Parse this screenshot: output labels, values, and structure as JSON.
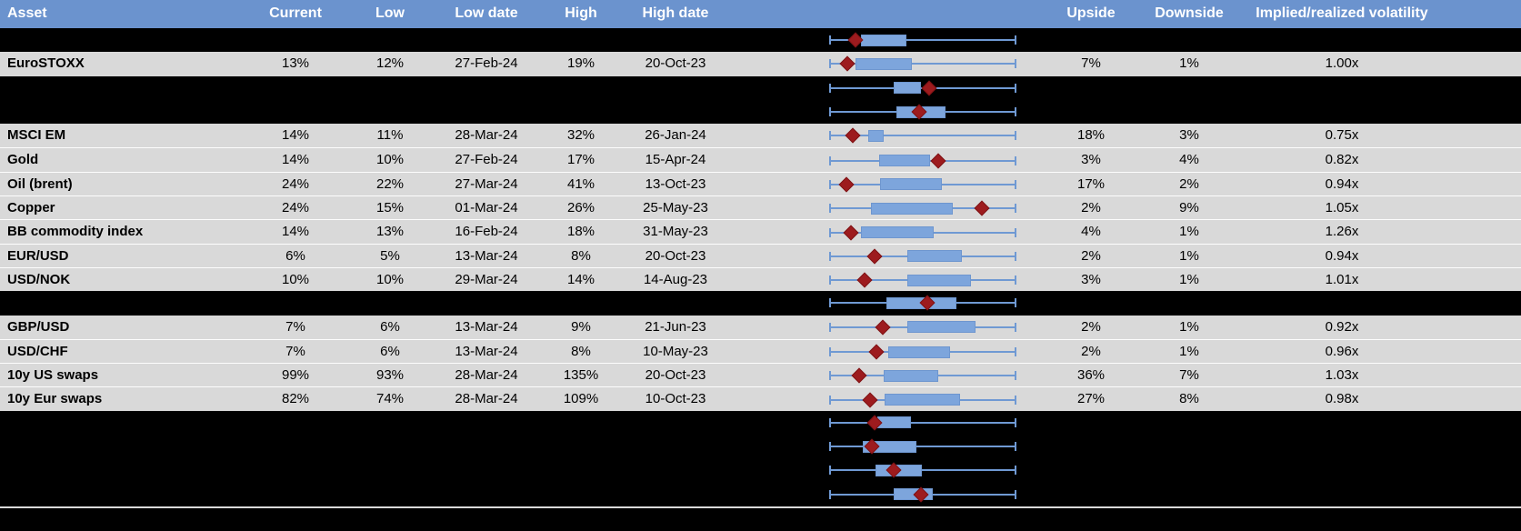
{
  "colors": {
    "header_bg": "#6b93ce",
    "header_text": "#ffffff",
    "row_bg": "#d9d9d9",
    "hidden_row_bg": "#000000",
    "whisker_blue": "#6f99d3",
    "box_blue": "#7da5dc",
    "marker_red": "#9d1b1e",
    "footer_rule": "#d9d9d9"
  },
  "header": {
    "labels": [
      "Asset",
      "Current",
      "Low",
      "Low date",
      "High",
      "High date",
      "",
      "Upside",
      "Downside",
      "Implied/realized volatility"
    ]
  },
  "chart_data": {
    "type": "table",
    "columns": [
      "Asset",
      "Current",
      "Low",
      "Low date",
      "High",
      "High date",
      "Range plot",
      "Upside",
      "Downside",
      "Implied/realized volatility"
    ],
    "plot_note": "Each row shows a box-whisker range plot: whiskers span full range (0-1 normalized), box and diamond marker positions are normalized fractions of the track width",
    "rows": [
      {
        "kind": "hidden",
        "plot": {
          "box_left": 0.167,
          "box_right": 0.412,
          "marker": 0.137
        }
      },
      {
        "kind": "data",
        "asset": "EuroSTOXX",
        "current": "13%",
        "low": "12%",
        "low_date": "27-Feb-24",
        "high": "19%",
        "high_date": "20-Oct-23",
        "upside": "7%",
        "downside": "1%",
        "impl_real": "1.00x",
        "plot": {
          "box_left": 0.137,
          "box_right": 0.441,
          "marker": 0.093
        }
      },
      {
        "kind": "hidden",
        "plot": {
          "box_left": 0.343,
          "box_right": 0.49,
          "marker": 0.535
        }
      },
      {
        "kind": "hidden",
        "plot": {
          "box_left": 0.357,
          "box_right": 0.622,
          "marker": 0.48
        }
      },
      {
        "kind": "data",
        "asset": "MSCI EM",
        "current": "14%",
        "low": "11%",
        "low_date": "28-Mar-24",
        "high": "32%",
        "high_date": "26-Jan-24",
        "upside": "18%",
        "downside": "3%",
        "impl_real": "0.75x",
        "plot": {
          "box_left": 0.206,
          "box_right": 0.289,
          "marker": 0.122
        }
      },
      {
        "kind": "data",
        "asset": "Gold",
        "current": "14%",
        "low": "10%",
        "low_date": "27-Feb-24",
        "high": "17%",
        "high_date": "15-Apr-24",
        "upside": "3%",
        "downside": "4%",
        "impl_real": "0.82x",
        "plot": {
          "box_left": 0.264,
          "box_right": 0.539,
          "marker": 0.583
        }
      },
      {
        "kind": "data",
        "asset": "Oil (brent)",
        "current": "24%",
        "low": "22%",
        "low_date": "27-Mar-24",
        "high": "41%",
        "high_date": "13-Oct-23",
        "upside": "17%",
        "downside": "2%",
        "impl_real": "0.94x",
        "plot": {
          "box_left": 0.268,
          "box_right": 0.603,
          "marker": 0.088
        }
      },
      {
        "kind": "data",
        "asset": "Copper",
        "current": "24%",
        "low": "15%",
        "low_date": "01-Mar-24",
        "high": "26%",
        "high_date": "25-May-23",
        "upside": "2%",
        "downside": "9%",
        "impl_real": "1.05x",
        "plot": {
          "box_left": 0.221,
          "box_right": 0.662,
          "marker": 0.819
        }
      },
      {
        "kind": "data",
        "asset": "BB commodity index",
        "current": "14%",
        "low": "13%",
        "low_date": "16-Feb-24",
        "high": "18%",
        "high_date": "31-May-23",
        "upside": "4%",
        "downside": "1%",
        "impl_real": "1.26x",
        "plot": {
          "box_left": 0.167,
          "box_right": 0.559,
          "marker": 0.113
        }
      },
      {
        "kind": "data",
        "asset": "EUR/USD",
        "current": "6%",
        "low": "5%",
        "low_date": "13-Mar-24",
        "high": "8%",
        "high_date": "20-Oct-23",
        "upside": "2%",
        "downside": "1%",
        "impl_real": "0.94x",
        "plot": {
          "box_left": 0.417,
          "box_right": 0.711,
          "marker": 0.24
        }
      },
      {
        "kind": "data",
        "asset": "USD/NOK",
        "current": "10%",
        "low": "10%",
        "low_date": "29-Mar-24",
        "high": "14%",
        "high_date": "14-Aug-23",
        "upside": "3%",
        "downside": "1%",
        "impl_real": "1.01x",
        "plot": {
          "box_left": 0.417,
          "box_right": 0.76,
          "marker": 0.186
        }
      },
      {
        "kind": "hidden",
        "plot": {
          "box_left": 0.304,
          "box_right": 0.681,
          "marker": 0.525
        }
      },
      {
        "kind": "data",
        "asset": "GBP/USD",
        "current": "7%",
        "low": "6%",
        "low_date": "13-Mar-24",
        "high": "9%",
        "high_date": "21-Jun-23",
        "upside": "2%",
        "downside": "1%",
        "impl_real": "0.92x",
        "plot": {
          "box_left": 0.417,
          "box_right": 0.784,
          "marker": 0.284
        }
      },
      {
        "kind": "data",
        "asset": "USD/CHF",
        "current": "7%",
        "low": "6%",
        "low_date": "13-Mar-24",
        "high": "8%",
        "high_date": "10-May-23",
        "upside": "2%",
        "downside": "1%",
        "impl_real": "0.96x",
        "plot": {
          "box_left": 0.314,
          "box_right": 0.647,
          "marker": 0.25
        }
      },
      {
        "kind": "data",
        "asset": "10y US swaps",
        "current": "99%",
        "low": "93%",
        "low_date": "28-Mar-24",
        "high": "135%",
        "high_date": "20-Oct-23",
        "upside": "36%",
        "downside": "7%",
        "impl_real": "1.03x",
        "plot": {
          "box_left": 0.289,
          "box_right": 0.583,
          "marker": 0.157
        }
      },
      {
        "kind": "data",
        "asset": "10y Eur swaps",
        "current": "82%",
        "low": "74%",
        "low_date": "28-Mar-24",
        "high": "109%",
        "high_date": "10-Oct-23",
        "upside": "27%",
        "downside": "8%",
        "impl_real": "0.98x",
        "plot": {
          "box_left": 0.294,
          "box_right": 0.701,
          "marker": 0.216
        }
      },
      {
        "kind": "hidden",
        "plot": {
          "box_left": 0.255,
          "box_right": 0.436,
          "marker": 0.24
        }
      },
      {
        "kind": "hidden",
        "plot": {
          "box_left": 0.177,
          "box_right": 0.466,
          "marker": 0.225
        }
      },
      {
        "kind": "hidden",
        "plot": {
          "box_left": 0.245,
          "box_right": 0.495,
          "marker": 0.343
        }
      },
      {
        "kind": "hidden",
        "plot": {
          "box_left": 0.343,
          "box_right": 0.554,
          "marker": 0.49
        }
      }
    ]
  }
}
